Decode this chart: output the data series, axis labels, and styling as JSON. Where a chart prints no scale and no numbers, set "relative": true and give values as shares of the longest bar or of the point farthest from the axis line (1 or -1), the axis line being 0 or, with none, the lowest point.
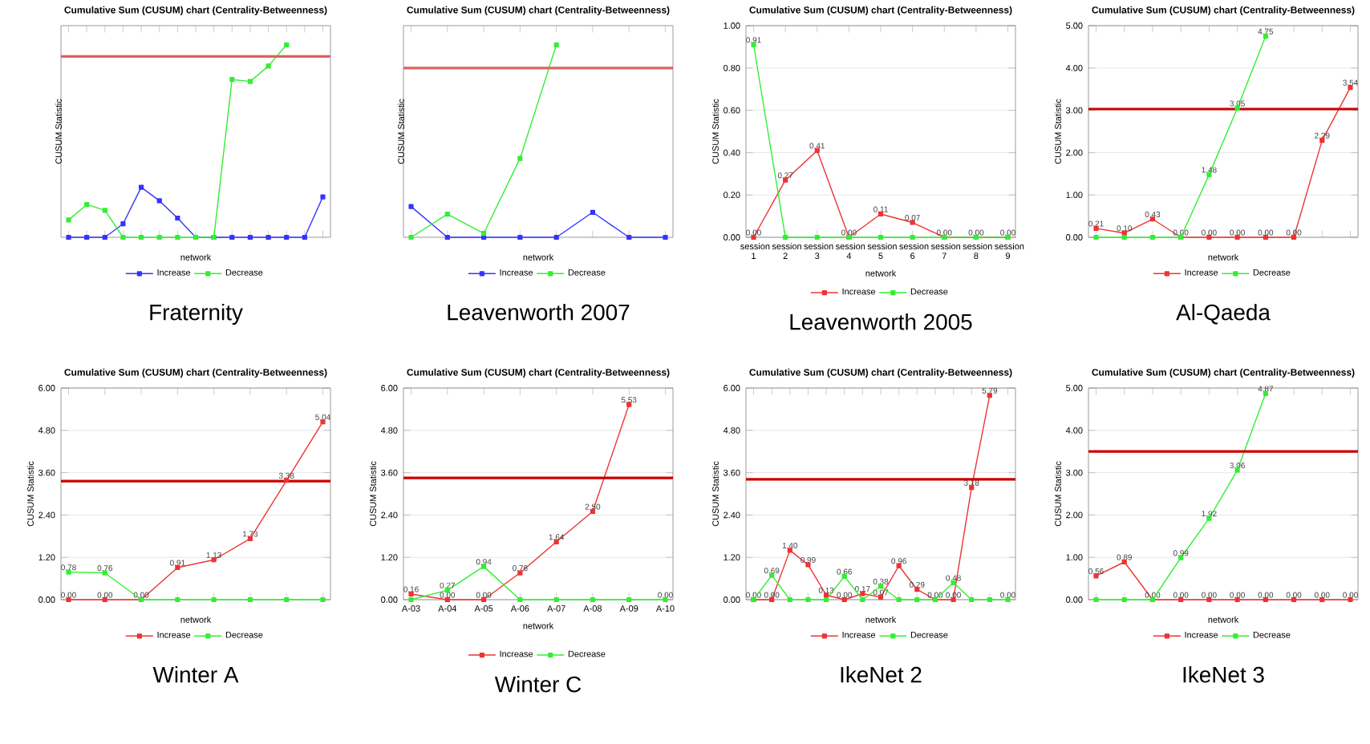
{
  "chart_data": [
    {
      "type": "line",
      "title": "Cumulative Sum (CUSUM) chart (Centrality-Betweenness)",
      "xlabel": "network",
      "ylabel": "CUSUM Statistic",
      "relative": true,
      "grid": "y",
      "legend": "bottom",
      "marker": "square",
      "annotations": [
        "Fraternity"
      ],
      "categories": [
        null,
        null,
        null,
        null,
        null,
        null,
        null,
        null,
        null,
        null,
        null,
        null,
        null,
        null,
        null
      ],
      "series": [
        {
          "name": "Increase",
          "color": "#3333ff",
          "values": [
            0,
            0,
            0,
            0.07,
            0.26,
            0.19,
            0.1,
            0,
            0,
            0,
            0,
            0,
            0,
            0,
            0.21
          ]
        },
        {
          "name": "Decrease",
          "color": "#33ee33",
          "values": [
            0.09,
            0.17,
            0.14,
            0,
            0,
            0,
            0,
            0,
            0,
            0.82,
            0.81,
            0.89,
            1.0,
            null,
            null
          ]
        }
      ],
      "ref_lines": [
        {
          "axis": "y",
          "value": 0.94,
          "color": "#e06060"
        }
      ]
    },
    {
      "type": "line",
      "title": "Cumulative Sum (CUSUM) chart (Centrality-Betweenness)",
      "xlabel": "network",
      "ylabel": "CUSUM Statistic",
      "relative": true,
      "grid": "y",
      "legend": "bottom",
      "marker": "square",
      "annotations": [
        "Leavenworth 2007"
      ],
      "categories": [
        null,
        null,
        null,
        null,
        null,
        null,
        null,
        null
      ],
      "series": [
        {
          "name": "Increase",
          "color": "#3333ff",
          "values": [
            0.16,
            0,
            0,
            0,
            0,
            0.13,
            0,
            0
          ]
        },
        {
          "name": "Decrease",
          "color": "#33ee33",
          "values": [
            0,
            0.12,
            0.02,
            0.41,
            1.0,
            null,
            null,
            null
          ]
        }
      ],
      "ref_lines": [
        {
          "axis": "y",
          "value": 0.88,
          "color": "#e06060"
        }
      ]
    },
    {
      "type": "line",
      "title": "Cumulative Sum (CUSUM) chart (Centrality-Betweenness)",
      "xlabel": "network",
      "ylabel": "CUSUM Statistic",
      "grid": "y",
      "legend": "bottom",
      "marker": "square",
      "annotations": [
        "Leavenworth 2005"
      ],
      "categories": [
        "session 1",
        "session 2",
        "session 3",
        "session 4",
        "session 5",
        "session 6",
        "session 7",
        "session 8",
        "session 9"
      ],
      "ylim": [
        0,
        1
      ],
      "yticks": [
        {
          "value": 0,
          "label": "0.00"
        },
        {
          "value": 0.2,
          "label": "0.20"
        },
        {
          "value": 0.4,
          "label": "0.40"
        },
        {
          "value": 0.6,
          "label": "0.60"
        },
        {
          "value": 0.8,
          "label": "0.80"
        },
        {
          "value": 1,
          "label": "1.00"
        }
      ],
      "series": [
        {
          "name": "Increase",
          "color": "#ee3333",
          "values": [
            0,
            0.27,
            0.41,
            0,
            0.11,
            0.07,
            0,
            0,
            0
          ],
          "value_labels": [
            "0.00",
            "0.27",
            "0.41",
            "0.00",
            "0.11",
            "0.07",
            "0.00",
            "0.00",
            "0.00"
          ]
        },
        {
          "name": "Decrease",
          "color": "#33ee33",
          "values": [
            0.91,
            0,
            0,
            0,
            0,
            0,
            0,
            0,
            0
          ],
          "value_labels": [
            "0.91",
            null,
            null,
            null,
            null,
            null,
            null,
            null,
            null
          ]
        }
      ]
    },
    {
      "type": "line",
      "title": "Cumulative Sum (CUSUM) chart (Centrality-Betweenness)",
      "xlabel": "network",
      "ylabel": "CUSUM Statistic",
      "grid": "y",
      "legend": "bottom",
      "marker": "square",
      "annotations": [
        "Al-Qaeda"
      ],
      "categories": [
        null,
        null,
        null,
        null,
        null,
        null,
        null,
        null,
        null,
        null
      ],
      "ylim": [
        0,
        5
      ],
      "yticks": [
        {
          "value": 0,
          "label": "0.00"
        },
        {
          "value": 1,
          "label": "1.00"
        },
        {
          "value": 2,
          "label": "2.00"
        },
        {
          "value": 3,
          "label": "3.00"
        },
        {
          "value": 4,
          "label": "4.00"
        },
        {
          "value": 5,
          "label": "5.00"
        }
      ],
      "series": [
        {
          "name": "Increase",
          "color": "#ee3333",
          "values": [
            0.21,
            0.1,
            0.43,
            0,
            0,
            0,
            0,
            0,
            2.29,
            3.54
          ],
          "value_labels": [
            "0.21",
            "0.10",
            "0.43",
            "0.00",
            "0.00",
            "0.00",
            "0.00",
            "0.00",
            "2.29",
            "3.54"
          ]
        },
        {
          "name": "Decrease",
          "color": "#33ee33",
          "values": [
            0,
            0,
            0,
            0,
            1.48,
            3.05,
            4.75,
            null,
            null,
            null
          ],
          "value_labels": [
            null,
            null,
            null,
            null,
            "1.48",
            "3.05",
            "4.75",
            null,
            null,
            null
          ]
        }
      ],
      "ref_lines": [
        {
          "axis": "y",
          "value": 3.03,
          "color": "#cc0000"
        }
      ]
    },
    {
      "type": "line",
      "title": "Cumulative Sum (CUSUM) chart (Centrality-Betweenness)",
      "xlabel": "network",
      "ylabel": "CUSUM Statistic",
      "grid": "y",
      "legend": "bottom",
      "marker": "square",
      "annotations": [
        "Winter A"
      ],
      "categories": [
        null,
        null,
        null,
        null,
        null,
        null,
        null,
        null
      ],
      "ylim": [
        0,
        6
      ],
      "yticks": [
        {
          "value": 0,
          "label": "0.00"
        },
        {
          "value": 1.2,
          "label": "1.20"
        },
        {
          "value": 2.4,
          "label": "2.40"
        },
        {
          "value": 3.6,
          "label": "3.60"
        },
        {
          "value": 4.8,
          "label": "4.80"
        },
        {
          "value": 6,
          "label": "6.00"
        }
      ],
      "series": [
        {
          "name": "Increase",
          "color": "#ee3333",
          "values": [
            0,
            0,
            0,
            0.91,
            1.13,
            1.73,
            3.38,
            5.04
          ],
          "value_labels": [
            "0.00",
            "0.00",
            "0.00",
            "0.91",
            "1.13",
            "1.73",
            "3.38",
            "5.04"
          ]
        },
        {
          "name": "Decrease",
          "color": "#33ee33",
          "values": [
            0.78,
            0.76,
            0,
            0,
            0,
            0,
            0,
            0
          ],
          "value_labels": [
            "0.78",
            "0.76",
            null,
            null,
            null,
            null,
            null,
            null
          ]
        }
      ],
      "ref_lines": [
        {
          "axis": "y",
          "value": 3.36,
          "color": "#cc0000"
        }
      ]
    },
    {
      "type": "line",
      "title": "Cumulative Sum (CUSUM) chart (Centrality-Betweenness)",
      "xlabel": "network",
      "ylabel": "CUSUM Statistic",
      "grid": "y",
      "legend": "bottom",
      "marker": "square",
      "annotations": [
        "Winter C"
      ],
      "categories": [
        "A-03",
        "A-04",
        "A-05",
        "A-06",
        "A-07",
        "A-08",
        "A-09",
        "A-10"
      ],
      "ylim": [
        0,
        6
      ],
      "yticks": [
        {
          "value": 0,
          "label": "0.00"
        },
        {
          "value": 1.2,
          "label": "1.20"
        },
        {
          "value": 2.4,
          "label": "2.40"
        },
        {
          "value": 3.6,
          "label": "3.60"
        },
        {
          "value": 4.8,
          "label": "4.80"
        },
        {
          "value": 6,
          "label": "6.00"
        }
      ],
      "series": [
        {
          "name": "Increase",
          "color": "#ee3333",
          "values": [
            0.16,
            0,
            0,
            0.76,
            1.64,
            2.5,
            5.53,
            null
          ],
          "value_labels": [
            "0.16",
            "0.00",
            "0.00",
            "0.76",
            "1.64",
            "2.50",
            "5.53",
            null
          ]
        },
        {
          "name": "Decrease",
          "color": "#33ee33",
          "values": [
            0,
            0.27,
            0.94,
            0,
            0,
            0,
            0,
            0
          ],
          "value_labels": [
            null,
            "0.27",
            "0.94",
            null,
            null,
            null,
            null,
            "0.00"
          ]
        }
      ],
      "ref_lines": [
        {
          "axis": "y",
          "value": 3.45,
          "color": "#cc0000"
        }
      ]
    },
    {
      "type": "line",
      "title": "Cumulative Sum (CUSUM) chart (Centrality-Betweenness)",
      "xlabel": "network",
      "ylabel": "CUSUM Statistic",
      "grid": "y",
      "legend": "bottom",
      "marker": "square",
      "annotations": [
        "IkeNet 2"
      ],
      "categories": [
        null,
        null,
        null,
        null,
        null,
        null,
        null,
        null,
        null,
        null,
        null,
        null,
        null,
        null,
        null
      ],
      "ylim": [
        0,
        6
      ],
      "yticks": [
        {
          "value": 0,
          "label": "0.00"
        },
        {
          "value": 1.2,
          "label": "1.20"
        },
        {
          "value": 2.4,
          "label": "2.40"
        },
        {
          "value": 3.6,
          "label": "3.60"
        },
        {
          "value": 4.8,
          "label": "4.80"
        },
        {
          "value": 6,
          "label": "6.00"
        }
      ],
      "series": [
        {
          "name": "Increase",
          "color": "#ee3333",
          "values": [
            0,
            0,
            1.4,
            0.99,
            0.13,
            0,
            0.17,
            0.07,
            0.96,
            0.29,
            0,
            0,
            3.18,
            5.79,
            null
          ],
          "value_labels": [
            "0.00",
            "0.00",
            "1.40",
            "0.99",
            "0.13",
            "0.00",
            "0.17",
            "0.07",
            "0.96",
            "0.29",
            "0.00",
            "0.00",
            "3.18",
            "5.79",
            null
          ]
        },
        {
          "name": "Decrease",
          "color": "#33ee33",
          "values": [
            0,
            0.69,
            0,
            0,
            0,
            0.66,
            0,
            0.38,
            0,
            0,
            0,
            0.48,
            0,
            0,
            0
          ],
          "value_labels": [
            null,
            "0.69",
            null,
            null,
            null,
            "0.66",
            null,
            "0.38",
            null,
            null,
            null,
            "0.48",
            null,
            null,
            "0.00"
          ]
        }
      ],
      "ref_lines": [
        {
          "axis": "y",
          "value": 3.41,
          "color": "#cc0000"
        }
      ]
    },
    {
      "type": "line",
      "title": "Cumulative Sum (CUSUM) chart (Centrality-Betweenness)",
      "xlabel": "network",
      "ylabel": "CUSUM Statistic",
      "grid": "y",
      "legend": "bottom",
      "marker": "square",
      "annotations": [
        "IkeNet 3"
      ],
      "categories": [
        null,
        null,
        null,
        null,
        null,
        null,
        null,
        null,
        null,
        null
      ],
      "ylim": [
        0,
        5
      ],
      "yticks": [
        {
          "value": 0,
          "label": "0.00"
        },
        {
          "value": 1,
          "label": "1.00"
        },
        {
          "value": 2,
          "label": "2.00"
        },
        {
          "value": 3,
          "label": "3.00"
        },
        {
          "value": 4,
          "label": "4.00"
        },
        {
          "value": 5,
          "label": "5.00"
        }
      ],
      "series": [
        {
          "name": "Increase",
          "color": "#ee3333",
          "values": [
            0.56,
            0.89,
            0,
            0,
            0,
            0,
            0,
            0,
            0,
            0
          ],
          "value_labels": [
            "0.56",
            "0.89",
            "0.00",
            "0.00",
            "0.00",
            "0.00",
            "0.00",
            "0.00",
            "0.00",
            "0.00"
          ]
        },
        {
          "name": "Decrease",
          "color": "#33ee33",
          "values": [
            0,
            0,
            0,
            0.99,
            1.92,
            3.06,
            4.87,
            null,
            null,
            null
          ],
          "value_labels": [
            null,
            null,
            null,
            "0.99",
            "1.92",
            "3.06",
            "4.87",
            null,
            null,
            null
          ]
        }
      ],
      "ref_lines": [
        {
          "axis": "y",
          "value": 3.5,
          "color": "#cc0000"
        }
      ]
    }
  ]
}
